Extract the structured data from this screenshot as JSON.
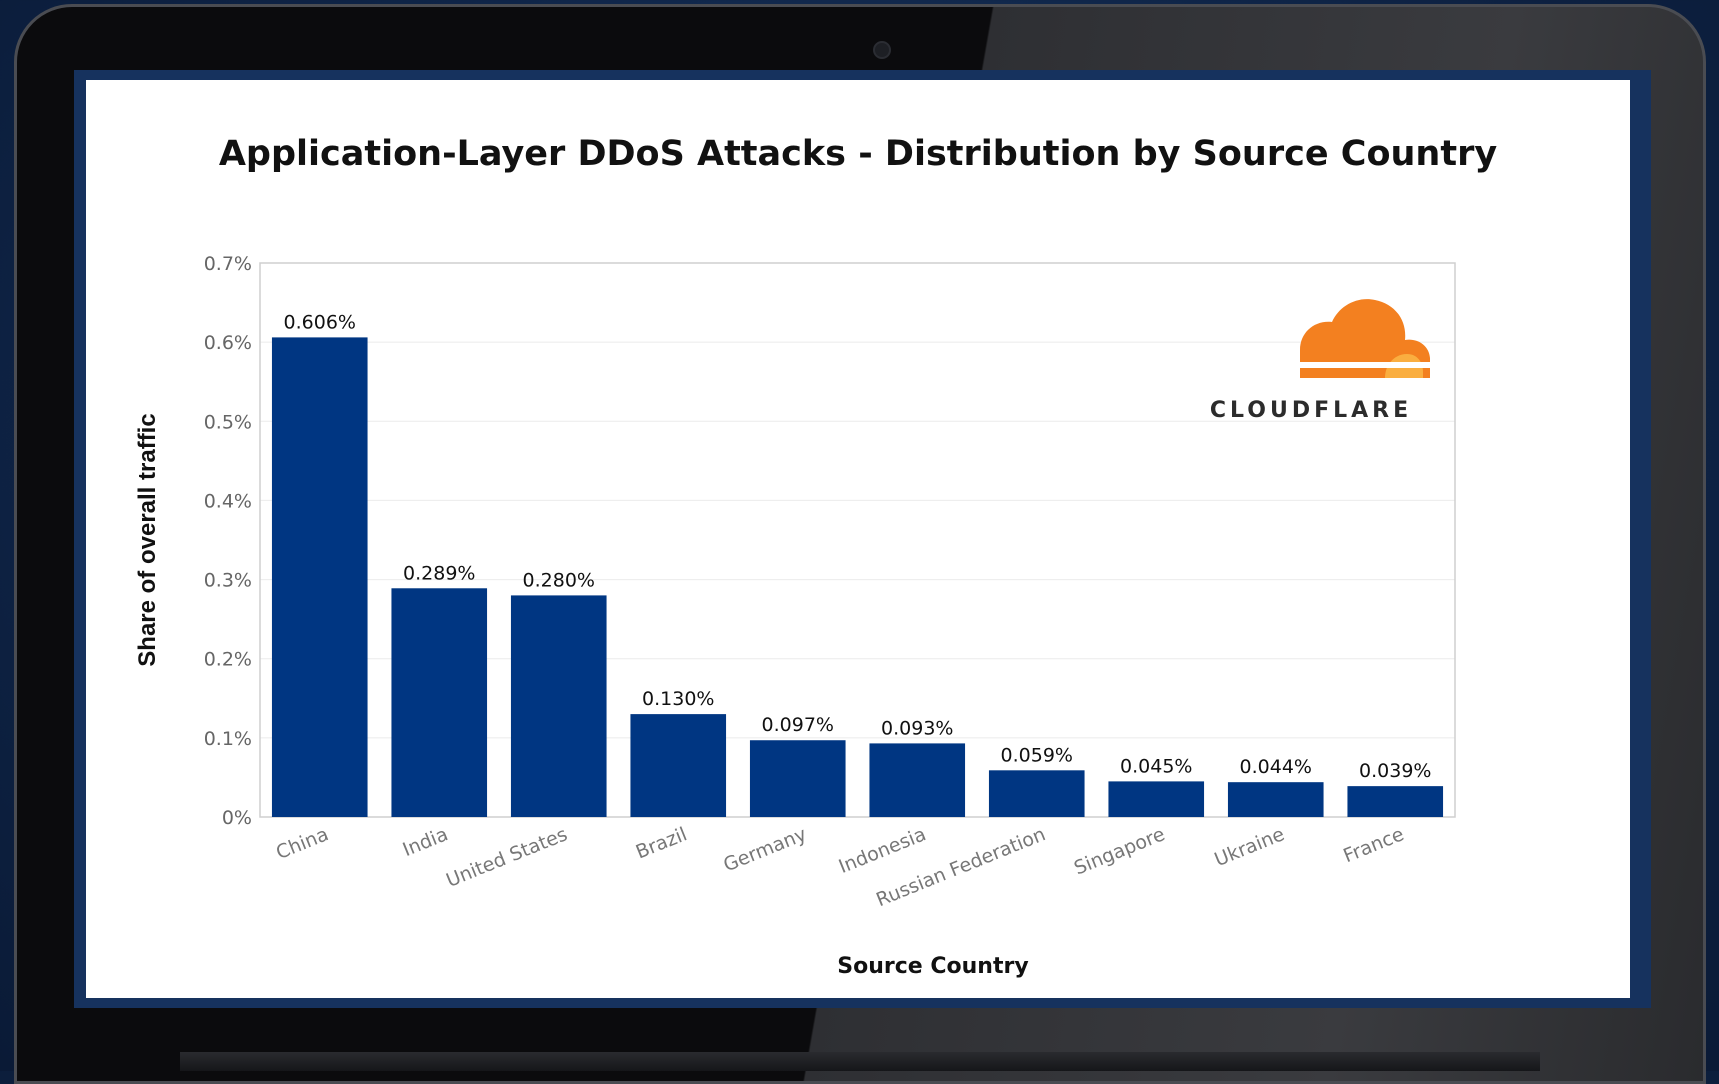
{
  "colors": {
    "bar": "#003682",
    "grid": "#ebebeb",
    "axis": "#cfcfcf",
    "logo_orange": "#f38020",
    "logo_light": "#faae40"
  },
  "logo": {
    "text": "CLOUDFLARE",
    "icon": "cloud-icon"
  },
  "chart_data": {
    "type": "bar",
    "title": "Application-Layer DDoS Attacks - Distribution by Source Country",
    "xlabel": "Source Country",
    "ylabel": "Share of overall traffic",
    "ylim": [
      0,
      0.7
    ],
    "yticks": [
      "0%",
      "0.1%",
      "0.2%",
      "0.3%",
      "0.4%",
      "0.5%",
      "0.6%",
      "0.7%"
    ],
    "categories": [
      "China",
      "India",
      "United States",
      "Brazil",
      "Germany",
      "Indonesia",
      "Russian Federation",
      "Singapore",
      "Ukraine",
      "France"
    ],
    "values": [
      0.606,
      0.289,
      0.28,
      0.13,
      0.097,
      0.093,
      0.059,
      0.045,
      0.044,
      0.039
    ],
    "data_labels": [
      "0.606%",
      "0.289%",
      "0.280%",
      "0.130%",
      "0.097%",
      "0.093%",
      "0.059%",
      "0.045%",
      "0.044%",
      "0.039%"
    ],
    "grid": true
  }
}
